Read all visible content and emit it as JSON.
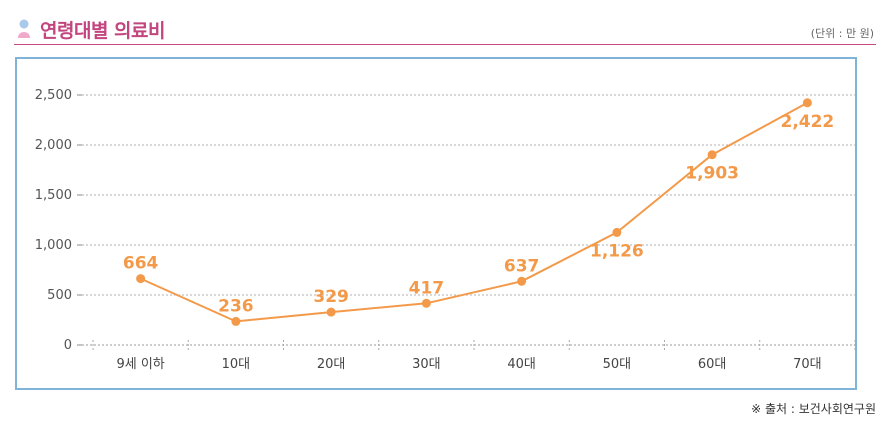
{
  "header": {
    "title": "연령대별 의료비",
    "unit": "(단위 : 만 원)"
  },
  "footer": {
    "source": "※ 출처 : 보건사회연구원"
  },
  "colors": {
    "accent": "#c2457f",
    "line": "#f39a4a",
    "frame": "#7fb3d8",
    "grid": "#b0b0b0"
  },
  "chart_data": {
    "type": "line",
    "title": "연령대별 의료비",
    "xlabel": "",
    "ylabel": "",
    "categories": [
      "9세 이하",
      "10대",
      "20대",
      "30대",
      "40대",
      "50대",
      "60대",
      "70대"
    ],
    "series": [
      {
        "name": "의료비",
        "values": [
          664,
          236,
          329,
          417,
          637,
          1126,
          1903,
          2422
        ]
      }
    ],
    "data_labels": [
      "664",
      "236",
      "329",
      "417",
      "637",
      "1,126",
      "1,903",
      "2,422"
    ],
    "y_ticks": [
      0,
      500,
      1000,
      1500,
      2000,
      2500
    ],
    "y_tick_labels": [
      "0",
      "500",
      "1,000",
      "1,500",
      "2,000",
      "2,500"
    ],
    "ylim": [
      0,
      2500
    ],
    "grid": true
  }
}
